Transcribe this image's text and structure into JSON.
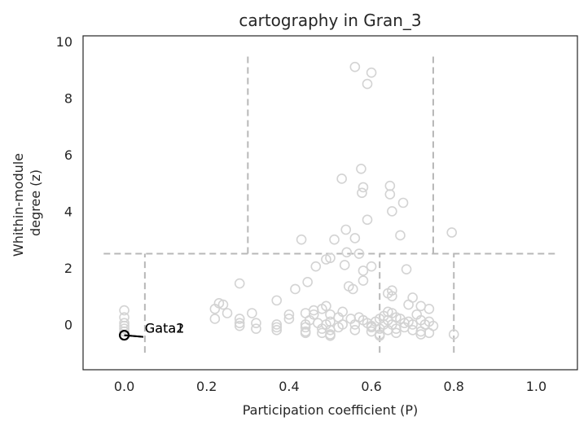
{
  "chart_data": {
    "type": "scatter",
    "title": "cartography in Gran_3",
    "xlabel": "Participation coefficient (P)",
    "ylabel_lines": [
      "Whithin-module",
      "degree (z)"
    ],
    "xlim": [
      -0.1,
      1.1
    ],
    "ylim": [
      -1.6,
      10.2
    ],
    "xticks": [
      0.0,
      0.2,
      0.4,
      0.6,
      0.8,
      1.0
    ],
    "xtick_labels": [
      "0.0",
      "0.2",
      "0.4",
      "0.6",
      "0.8",
      "1.0"
    ],
    "yticks": [
      0,
      2,
      4,
      6,
      8,
      10
    ],
    "ytick_labels": [
      "0",
      "2",
      "4",
      "6",
      "8",
      "10"
    ],
    "grid": false,
    "colors": {
      "points": "#d3d3d3",
      "highlight": "#000000",
      "guides": "#b8b8b8",
      "frame": "#262626"
    },
    "guide_lines": [
      {
        "orientation": "horizontal",
        "y": 2.5,
        "x": [
          -0.05,
          1.05
        ]
      },
      {
        "orientation": "vertical",
        "x": 0.3,
        "y": [
          2.5,
          9.6
        ]
      },
      {
        "orientation": "vertical",
        "x": 0.75,
        "y": [
          2.5,
          9.6
        ]
      },
      {
        "orientation": "vertical",
        "x": 0.05,
        "y": [
          -1.0,
          2.5
        ]
      },
      {
        "orientation": "vertical",
        "x": 0.62,
        "y": [
          -1.0,
          2.5
        ]
      },
      {
        "orientation": "vertical",
        "x": 0.8,
        "y": [
          -1.0,
          2.5
        ]
      }
    ],
    "points": [
      [
        0.56,
        9.1
      ],
      [
        0.6,
        8.9
      ],
      [
        0.59,
        8.5
      ],
      [
        0.575,
        5.5
      ],
      [
        0.528,
        5.15
      ],
      [
        0.58,
        4.85
      ],
      [
        0.577,
        4.65
      ],
      [
        0.645,
        4.9
      ],
      [
        0.645,
        4.6
      ],
      [
        0.65,
        4.0
      ],
      [
        0.677,
        4.3
      ],
      [
        0.59,
        3.7
      ],
      [
        0.538,
        3.35
      ],
      [
        0.43,
        3.0
      ],
      [
        0.51,
        3.0
      ],
      [
        0.56,
        3.05
      ],
      [
        0.67,
        3.15
      ],
      [
        0.795,
        3.25
      ],
      [
        0.54,
        2.55
      ],
      [
        0.57,
        2.5
      ],
      [
        0.5,
        2.35
      ],
      [
        0.49,
        2.3
      ],
      [
        0.535,
        2.1
      ],
      [
        0.465,
        2.05
      ],
      [
        0.6,
        2.05
      ],
      [
        0.58,
        1.9
      ],
      [
        0.685,
        1.95
      ],
      [
        0.58,
        1.55
      ],
      [
        0.445,
        1.5
      ],
      [
        0.28,
        1.45
      ],
      [
        0.545,
        1.35
      ],
      [
        0.555,
        1.25
      ],
      [
        0.415,
        1.25
      ],
      [
        0.65,
        1.2
      ],
      [
        0.64,
        1.1
      ],
      [
        0.65,
        1.0
      ],
      [
        0.7,
        0.95
      ],
      [
        0.37,
        0.85
      ],
      [
        0.69,
        0.7
      ],
      [
        0.23,
        0.75
      ],
      [
        0.24,
        0.7
      ],
      [
        0.72,
        0.65
      ],
      [
        0.49,
        0.65
      ],
      [
        0.22,
        0.55
      ],
      [
        0.48,
        0.55
      ],
      [
        0.46,
        0.5
      ],
      [
        0.74,
        0.55
      ],
      [
        0.64,
        0.45
      ],
      [
        0.53,
        0.45
      ],
      [
        0.25,
        0.4
      ],
      [
        0.31,
        0.4
      ],
      [
        0.44,
        0.4
      ],
      [
        0.46,
        0.35
      ],
      [
        0.4,
        0.35
      ],
      [
        0.65,
        0.4
      ],
      [
        0.5,
        0.35
      ],
      [
        0.71,
        0.35
      ],
      [
        0.63,
        0.3
      ],
      [
        0.22,
        0.2
      ],
      [
        0.28,
        0.2
      ],
      [
        0.4,
        0.2
      ],
      [
        0.45,
        0.15
      ],
      [
        0.52,
        0.25
      ],
      [
        0.55,
        0.2
      ],
      [
        0.57,
        0.25
      ],
      [
        0.58,
        0.15
      ],
      [
        0.61,
        0.1
      ],
      [
        0.62,
        0.2
      ],
      [
        0.64,
        0.15
      ],
      [
        0.66,
        0.25
      ],
      [
        0.67,
        0.2
      ],
      [
        0.69,
        0.1
      ],
      [
        0.72,
        0.15
      ],
      [
        0.74,
        0.1
      ],
      [
        0.28,
        0.05
      ],
      [
        0.32,
        0.05
      ],
      [
        0.37,
        0.0
      ],
      [
        0.44,
        0.0
      ],
      [
        0.47,
        0.05
      ],
      [
        0.49,
        0.0
      ],
      [
        0.5,
        0.1
      ],
      [
        0.53,
        0.0
      ],
      [
        0.56,
        0.0
      ],
      [
        0.59,
        0.05
      ],
      [
        0.6,
        -0.05
      ],
      [
        0.63,
        0.0
      ],
      [
        0.65,
        0.0
      ],
      [
        0.68,
        0.05
      ],
      [
        0.7,
        0.0
      ],
      [
        0.73,
        0.0
      ],
      [
        0.75,
        -0.05
      ],
      [
        0.28,
        -0.05
      ],
      [
        0.32,
        -0.15
      ],
      [
        0.37,
        -0.1
      ],
      [
        0.44,
        -0.1
      ],
      [
        0.48,
        -0.15
      ],
      [
        0.5,
        -0.2
      ],
      [
        0.52,
        -0.1
      ],
      [
        0.56,
        -0.2
      ],
      [
        0.6,
        -0.1
      ],
      [
        0.62,
        -0.15
      ],
      [
        0.64,
        -0.2
      ],
      [
        0.66,
        -0.15
      ],
      [
        0.68,
        -0.1
      ],
      [
        0.7,
        -0.2
      ],
      [
        0.72,
        -0.25
      ],
      [
        0.74,
        -0.3
      ],
      [
        0.37,
        -0.2
      ],
      [
        0.44,
        -0.25
      ],
      [
        0.48,
        -0.3
      ],
      [
        0.5,
        -0.35
      ],
      [
        0.6,
        -0.25
      ],
      [
        0.62,
        -0.35
      ],
      [
        0.66,
        -0.3
      ],
      [
        0.72,
        -0.35
      ],
      [
        0.8,
        -0.35
      ],
      [
        0.44,
        -0.3
      ],
      [
        0.5,
        -0.4
      ],
      [
        0.62,
        -0.4
      ],
      [
        0.0,
        0.5
      ],
      [
        0.0,
        0.25
      ],
      [
        0.0,
        0.05
      ],
      [
        0.0,
        -0.05
      ],
      [
        0.0,
        -0.15
      ],
      [
        0.0,
        -0.25
      ]
    ],
    "highlighted": [
      {
        "x": 0.0,
        "y": -0.38,
        "label": "Gata1",
        "label_x": 0.05,
        "label_y": -0.15
      },
      {
        "x": 0.0,
        "y": -0.38,
        "label": "Gata2",
        "label_x": 0.05,
        "label_y": -0.15
      }
    ]
  }
}
